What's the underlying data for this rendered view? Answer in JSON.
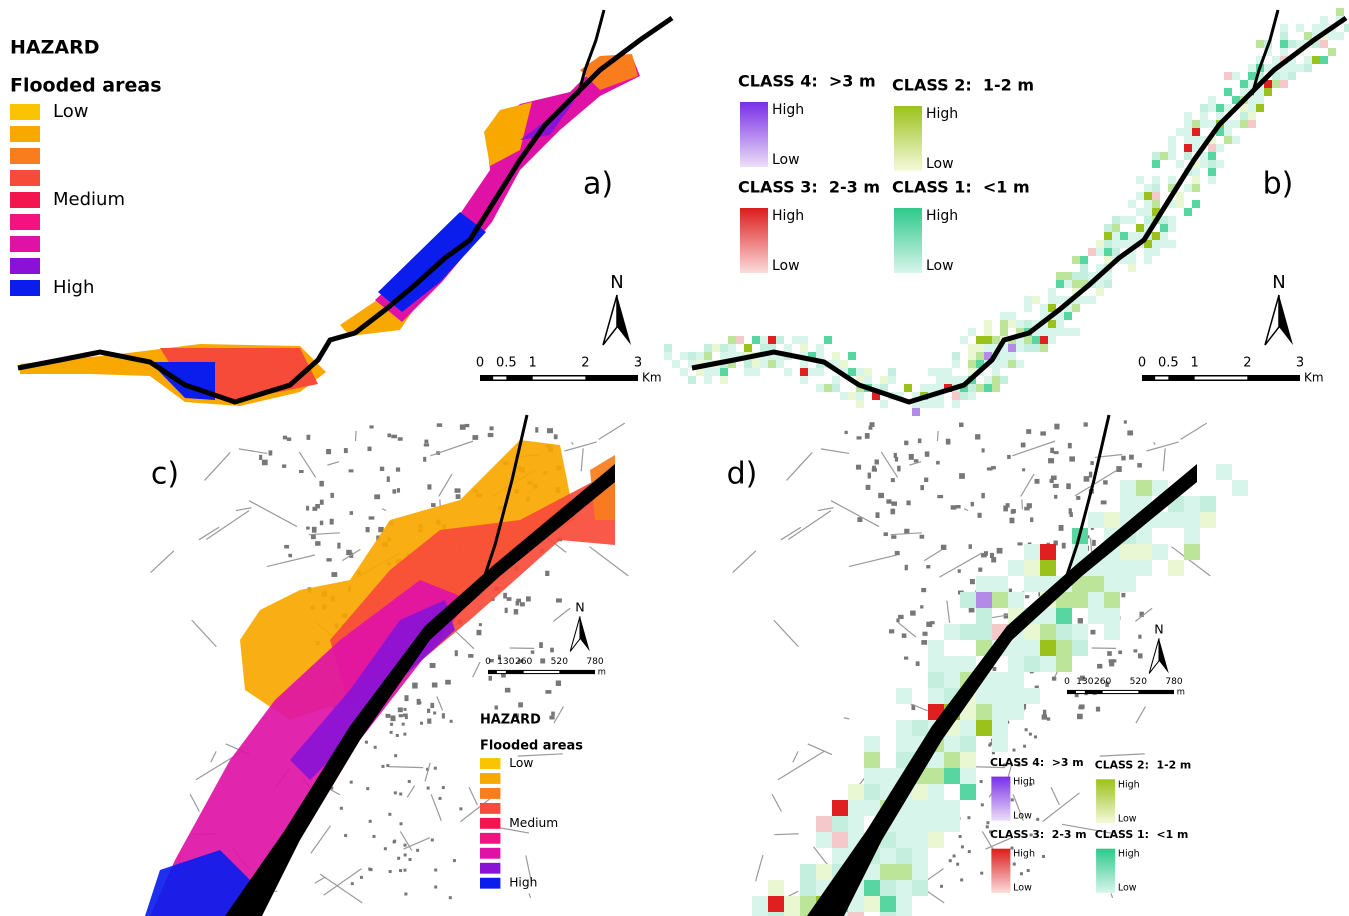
{
  "panels": [
    {
      "label": "a)",
      "north": "N",
      "scale": {
        "ticks": [
          "0",
          "0.5",
          "1",
          "2",
          "3"
        ],
        "unit": "Km"
      },
      "legend": {
        "title": "HAZARD",
        "subtitle": "Flooded areas",
        "levels": [
          "Low",
          "Medium",
          "High"
        ]
      }
    },
    {
      "label": "b)",
      "north": "N",
      "scale": {
        "ticks": [
          "0",
          "0.5",
          "1",
          "2",
          "3"
        ],
        "unit": "Km"
      },
      "legend": {
        "classes": [
          {
            "name": "CLASS 4:  >3 m",
            "high": "High",
            "low": "Low"
          },
          {
            "name": "CLASS 2:  1-2 m",
            "high": "High",
            "low": "Low"
          },
          {
            "name": "CLASS 3:  2-3 m",
            "high": "High",
            "low": "Low"
          },
          {
            "name": "CLASS 1:  <1 m",
            "high": "High",
            "low": "Low"
          }
        ]
      }
    },
    {
      "label": "c)",
      "north": "N",
      "scale": {
        "ticks": [
          "0",
          "130",
          "260",
          "520",
          "780"
        ],
        "unit": "m"
      },
      "legend": {
        "title": "HAZARD",
        "subtitle": "Flooded areas",
        "levels": [
          "Low",
          "Medium",
          "High"
        ]
      }
    },
    {
      "label": "d)",
      "north": "N",
      "scale": {
        "ticks": [
          "0",
          "130",
          "260",
          "520",
          "780"
        ],
        "unit": "m"
      },
      "legend": {
        "classes": [
          {
            "name": "CLASS 4:  >3 m",
            "high": "High",
            "low": "Low"
          },
          {
            "name": "CLASS 2:  1-2 m",
            "high": "High",
            "low": "Low"
          },
          {
            "name": "CLASS 3:  2-3 m",
            "high": "High",
            "low": "Low"
          },
          {
            "name": "CLASS 1:  <1 m",
            "high": "High",
            "low": "Low"
          }
        ]
      }
    }
  ]
}
